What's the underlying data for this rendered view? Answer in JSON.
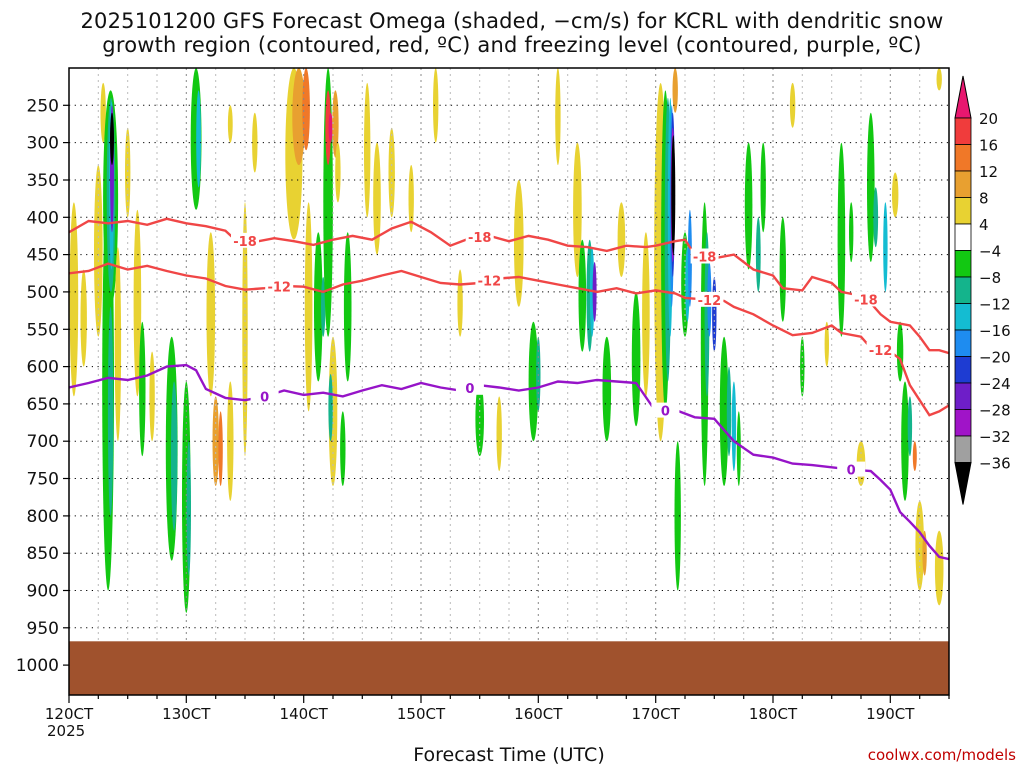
{
  "title_line1": "2025101200 GFS Forecast Omega (shaded, −cm/s) for KCRL with dendritic snow",
  "title_line2": "growth region (contoured, red, ºC) and freezing level (contoured, purple, ºC)",
  "footer_credit": "coolwx.com/models",
  "chart_data": {
    "type": "heatmap",
    "xlabel": "Forecast Time (UTC)",
    "x_year_label": "2025",
    "x_ticks": [
      {
        "hour": 0,
        "label": "120CT"
      },
      {
        "hour": 24,
        "label": "130CT"
      },
      {
        "hour": 48,
        "label": "140CT"
      },
      {
        "hour": 72,
        "label": "150CT"
      },
      {
        "hour": 96,
        "label": "160CT"
      },
      {
        "hour": 120,
        "label": "170CT"
      },
      {
        "hour": 144,
        "label": "180CT"
      },
      {
        "hour": 168,
        "label": "190CT"
      }
    ],
    "xlim": [
      0,
      180
    ],
    "y_ticks": [
      250,
      300,
      350,
      400,
      450,
      500,
      550,
      600,
      650,
      700,
      750,
      800,
      850,
      900,
      950,
      1000
    ],
    "ylim": [
      1040,
      200
    ],
    "colorbar": {
      "labels": [
        "20",
        "16",
        "12",
        "8",
        "4",
        "−4",
        "−8",
        "−12",
        "−16",
        "−20",
        "−24",
        "−28",
        "−32",
        "−36"
      ],
      "bins": [
        {
          "range": ">20",
          "color": "#e8176f"
        },
        {
          "range": "16-20",
          "color": "#f03c3c"
        },
        {
          "range": "12-16",
          "color": "#f07828"
        },
        {
          "range": "8-12",
          "color": "#e8a030"
        },
        {
          "range": "4-8",
          "color": "#e8d232"
        },
        {
          "range": "-4-4",
          "color": "#ffffff"
        },
        {
          "range": "-8--4",
          "color": "#12c812"
        },
        {
          "range": "-12--8",
          "color": "#14b48c"
        },
        {
          "range": "-16--12",
          "color": "#14bcd2"
        },
        {
          "range": "-20--16",
          "color": "#1e8cf0"
        },
        {
          "range": "-24--20",
          "color": "#1e3cd2"
        },
        {
          "range": "-28--24",
          "color": "#6e1ec8"
        },
        {
          "range": "-32--28",
          "color": "#a014c8"
        },
        {
          "range": "-36--32",
          "color": "#a0a0a0"
        },
        {
          "range": "<-36",
          "color": "#000000"
        }
      ]
    },
    "contours": [
      {
        "label": "-18",
        "color": "#f04646",
        "points": [
          [
            0,
            420
          ],
          [
            4,
            405
          ],
          [
            8,
            408
          ],
          [
            12,
            405
          ],
          [
            16,
            410
          ],
          [
            20,
            402
          ],
          [
            24,
            408
          ],
          [
            28,
            412
          ],
          [
            32,
            418
          ],
          [
            34,
            430
          ],
          [
            38,
            433
          ],
          [
            42,
            428
          ],
          [
            46,
            432
          ],
          [
            50,
            437
          ],
          [
            54,
            430
          ],
          [
            58,
            425
          ],
          [
            62,
            430
          ],
          [
            66,
            415
          ],
          [
            70,
            406
          ],
          [
            74,
            420
          ],
          [
            78,
            438
          ],
          [
            82,
            428
          ],
          [
            86,
            425
          ],
          [
            90,
            432
          ],
          [
            94,
            425
          ],
          [
            98,
            430
          ],
          [
            102,
            438
          ],
          [
            106,
            440
          ],
          [
            110,
            445
          ],
          [
            114,
            438
          ],
          [
            118,
            440
          ],
          [
            120,
            438
          ],
          [
            124,
            432
          ],
          [
            126,
            430
          ],
          [
            128,
            450
          ],
          [
            132,
            455
          ],
          [
            136,
            450
          ],
          [
            140,
            470
          ],
          [
            144,
            478
          ],
          [
            146,
            495
          ],
          [
            150,
            498
          ],
          [
            152,
            480
          ],
          [
            156,
            488
          ],
          [
            158,
            500
          ],
          [
            162,
            505
          ],
          [
            164,
            515
          ],
          [
            166,
            530
          ],
          [
            168,
            540
          ],
          [
            172,
            545
          ],
          [
            174,
            560
          ],
          [
            176,
            578
          ],
          [
            178,
            578
          ],
          [
            180,
            582
          ]
        ],
        "label_hours": [
          36,
          84,
          130,
          163
        ]
      },
      {
        "label": "-12",
        "color": "#f04646",
        "points": [
          [
            0,
            475
          ],
          [
            4,
            472
          ],
          [
            8,
            462
          ],
          [
            12,
            470
          ],
          [
            16,
            465
          ],
          [
            20,
            472
          ],
          [
            24,
            478
          ],
          [
            28,
            482
          ],
          [
            32,
            492
          ],
          [
            36,
            497
          ],
          [
            40,
            495
          ],
          [
            44,
            492
          ],
          [
            48,
            493
          ],
          [
            52,
            500
          ],
          [
            56,
            490
          ],
          [
            60,
            485
          ],
          [
            64,
            478
          ],
          [
            68,
            472
          ],
          [
            72,
            480
          ],
          [
            76,
            488
          ],
          [
            80,
            490
          ],
          [
            84,
            488
          ],
          [
            88,
            482
          ],
          [
            92,
            480
          ],
          [
            96,
            485
          ],
          [
            100,
            490
          ],
          [
            104,
            495
          ],
          [
            108,
            500
          ],
          [
            112,
            495
          ],
          [
            116,
            502
          ],
          [
            120,
            498
          ],
          [
            124,
            502
          ],
          [
            126,
            508
          ],
          [
            130,
            510
          ],
          [
            134,
            512
          ],
          [
            136,
            520
          ],
          [
            140,
            530
          ],
          [
            144,
            545
          ],
          [
            148,
            558
          ],
          [
            152,
            555
          ],
          [
            156,
            545
          ],
          [
            158,
            555
          ],
          [
            162,
            560
          ],
          [
            164,
            575
          ],
          [
            168,
            580
          ],
          [
            170,
            590
          ],
          [
            172,
            625
          ],
          [
            176,
            665
          ],
          [
            178,
            660
          ],
          [
            180,
            652
          ]
        ],
        "label_hours": [
          43,
          86,
          131,
          166
        ]
      },
      {
        "label": "0",
        "color": "#9614c8",
        "points": [
          [
            0,
            628
          ],
          [
            4,
            622
          ],
          [
            8,
            615
          ],
          [
            12,
            618
          ],
          [
            16,
            612
          ],
          [
            20,
            600
          ],
          [
            24,
            598
          ],
          [
            26,
            605
          ],
          [
            28,
            630
          ],
          [
            32,
            642
          ],
          [
            36,
            645
          ],
          [
            40,
            640
          ],
          [
            44,
            632
          ],
          [
            48,
            638
          ],
          [
            52,
            635
          ],
          [
            56,
            640
          ],
          [
            60,
            632
          ],
          [
            64,
            625
          ],
          [
            68,
            630
          ],
          [
            72,
            622
          ],
          [
            76,
            628
          ],
          [
            80,
            632
          ],
          [
            84,
            625
          ],
          [
            88,
            628
          ],
          [
            92,
            632
          ],
          [
            96,
            628
          ],
          [
            100,
            620
          ],
          [
            104,
            622
          ],
          [
            108,
            618
          ],
          [
            112,
            620
          ],
          [
            116,
            622
          ],
          [
            120,
            660
          ],
          [
            124,
            658
          ],
          [
            128,
            668
          ],
          [
            132,
            670
          ],
          [
            136,
            700
          ],
          [
            140,
            718
          ],
          [
            144,
            722
          ],
          [
            148,
            730
          ],
          [
            152,
            732
          ],
          [
            156,
            735
          ],
          [
            160,
            738
          ],
          [
            164,
            740
          ],
          [
            166,
            752
          ],
          [
            168,
            765
          ],
          [
            170,
            795
          ],
          [
            172,
            808
          ],
          [
            174,
            822
          ],
          [
            176,
            840
          ],
          [
            178,
            855
          ],
          [
            180,
            858
          ]
        ],
        "label_hours": [
          40,
          82,
          122,
          160
        ]
      }
    ],
    "terrain_pressure": 968,
    "terrain_color": "#a0522d"
  }
}
